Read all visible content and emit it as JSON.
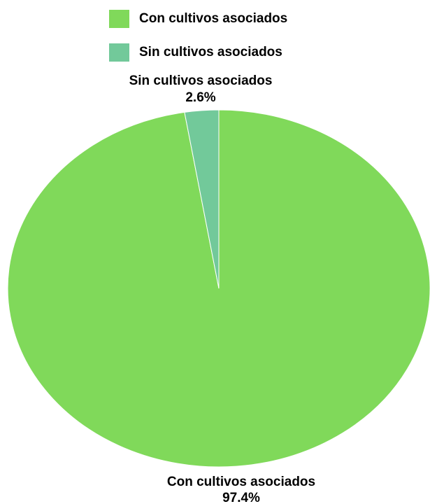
{
  "chart_data": {
    "type": "pie",
    "categories": [
      "Con cultivos asociados",
      "Sin cultivos asociados"
    ],
    "values": [
      97.4,
      2.6
    ],
    "value_labels": [
      "97.4%",
      "2.6%"
    ],
    "colors": [
      "#80D95A",
      "#72C99A"
    ],
    "legend": {
      "placement": "top",
      "entries": [
        "Con cultivos asociados",
        "Sin cultivos asociados"
      ]
    },
    "start_angle": "12 o'clock",
    "direction": "clockwise"
  }
}
